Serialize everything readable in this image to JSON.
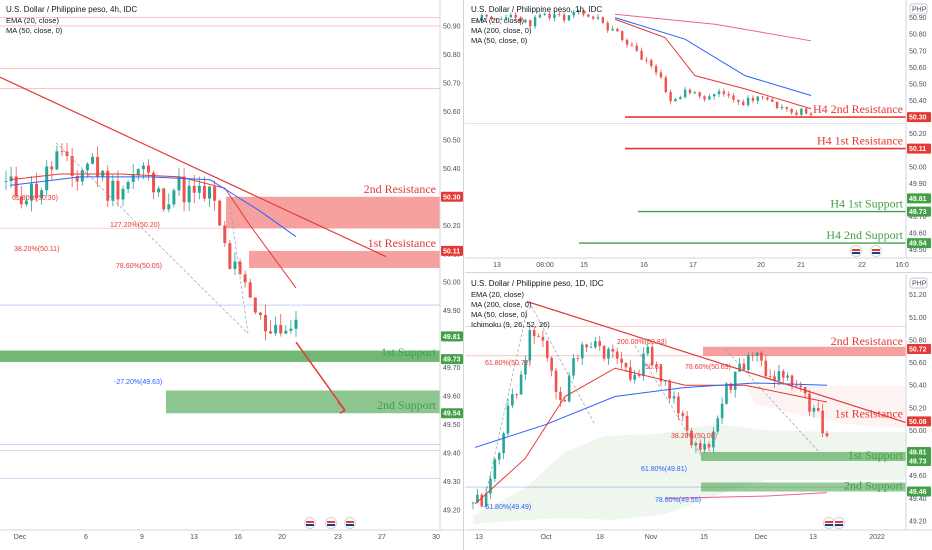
{
  "colors": {
    "up": "#26a69a",
    "down": "#ef5350",
    "red": "#e53935",
    "green": "#43a047",
    "blue": "#2962ff"
  },
  "chart_data": [
    {
      "id": "p4h",
      "type": "candlestick",
      "title": "U.S. Dollar / Philippine peso, 4h, IDC",
      "legend": [
        "EMA (20, close)",
        "MA (50, close, 0)"
      ],
      "price_badge": "",
      "xticks": [
        "Dec",
        "6",
        "9",
        "13",
        "16",
        "20",
        "23",
        "27",
        "30"
      ],
      "yticks": [
        "50.90",
        "50.80",
        "50.70",
        "50.60",
        "50.50",
        "50.40",
        "50.30",
        "50.20",
        "50.10",
        "50.00",
        "49.90",
        "49.80",
        "49.70",
        "49.60",
        "49.50",
        "49.40",
        "49.30",
        "49.20"
      ],
      "ylim": [
        49.13,
        50.97
      ],
      "levels": [
        {
          "label": "2nd Resistance",
          "tag": "50.30",
          "kind": "res"
        },
        {
          "label": "1st Resistance",
          "tag": "50.11",
          "kind": "res"
        },
        {
          "label": "",
          "tag": "49.81",
          "kind": "sup"
        },
        {
          "label": "1st Support",
          "tag": "49.73",
          "kind": "sup"
        },
        {
          "label": "2nd Support",
          "tag": "49.54",
          "kind": "sup"
        }
      ],
      "fibs": [
        "61.80%(50.30)",
        "127.20%(50.20)",
        "38.20%(50.11)",
        "78.60%(50.05)",
        "-27.20%(49.63)"
      ]
    },
    {
      "id": "p1h",
      "type": "candlestick",
      "title": "U.S. Dollar / Philippine peso, 1h, IDC",
      "legend": [
        "EMA (20, close)",
        "MA (200, close, 0)",
        "MA (50, close, 0)"
      ],
      "price_badge": "PHP",
      "xticks": [
        "13",
        "08:00",
        "15",
        "16",
        "17",
        "20",
        "21",
        "22",
        "16:0"
      ],
      "yticks": [
        "50.90",
        "50.80",
        "50.70",
        "50.60",
        "50.50",
        "50.40",
        "50.30",
        "50.20",
        "50.10",
        "50.00",
        "49.90",
        "49.80",
        "49.70",
        "49.60",
        "49.50"
      ],
      "ylim": [
        49.45,
        50.97
      ],
      "levels": [
        {
          "label": "H4 2nd Resistance",
          "tag": "50.30",
          "kind": "res"
        },
        {
          "label": "H4 1st Resistance",
          "tag": "50.11",
          "kind": "res"
        },
        {
          "label": "",
          "tag": "49.81",
          "kind": "sup"
        },
        {
          "label": "H4 1st Support",
          "tag": "49.73",
          "kind": "sup"
        },
        {
          "label": "H4 2nd Support",
          "tag": "49.54",
          "kind": "sup"
        }
      ],
      "fibs": []
    },
    {
      "id": "p1d",
      "type": "candlestick",
      "title": "U.S. Dollar / Philippine peso, 1D, IDC",
      "legend": [
        "EMA (20, close)",
        "MA (200, close, 0)",
        "MA (50, close, 0)",
        "Ichimoku (9, 26, 52, 26)"
      ],
      "price_badge": "PHP",
      "xticks": [
        "13",
        "Oct",
        "18",
        "Nov",
        "15",
        "Dec",
        "13",
        "2022"
      ],
      "yticks": [
        "51.20",
        "51.00",
        "50.80",
        "50.60",
        "50.40",
        "50.20",
        "50.00",
        "49.80",
        "49.60",
        "49.40",
        "49.20"
      ],
      "ylim": [
        49.12,
        51.33
      ],
      "levels": [
        {
          "label": "2nd Resistance",
          "tag": "50.72",
          "kind": "res"
        },
        {
          "label": "1st Resistance",
          "tag": "50.08",
          "kind": "res"
        },
        {
          "label": "",
          "tag": "49.81",
          "kind": "sup"
        },
        {
          "label": "1st Support",
          "tag": "49.73",
          "kind": "sup"
        },
        {
          "label": "2nd Support",
          "tag": "49.46",
          "kind": "sup"
        }
      ],
      "fibs": [
        "61.80%(50.72)",
        "200.00%(50.83)",
        "78.60%(50.69)",
        "61.80%(49.81)",
        "78.60%(49.55)",
        "-61.80%(49.49)",
        "38.20%(50.08)",
        "50.67"
      ]
    }
  ]
}
